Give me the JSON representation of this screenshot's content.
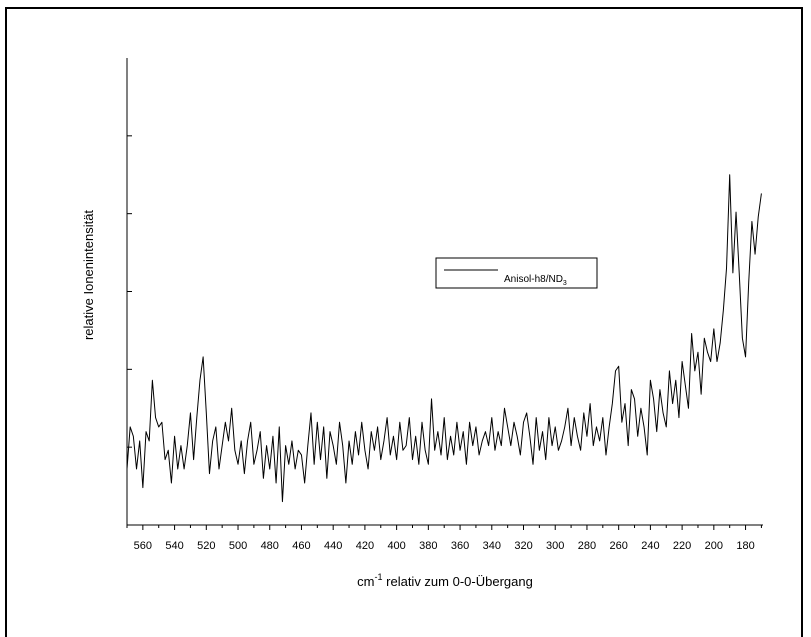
{
  "chart_data": {
    "type": "line",
    "title": "",
    "xlabel": "cm",
    "xlabel_superscript": "-1",
    "xlabel_suffix": " relativ zum 0-0-Übergang",
    "ylabel": "relative Ionenintensität",
    "xlim": [
      570,
      169
    ],
    "ylim": [
      0,
      1
    ],
    "x_ticks": [
      560,
      540,
      520,
      500,
      480,
      460,
      440,
      420,
      400,
      380,
      360,
      340,
      320,
      300,
      280,
      260,
      240,
      220,
      200,
      180
    ],
    "y_ticks_count": 6,
    "y_tick_labels_shown": false,
    "grid": false,
    "legend": {
      "placement": "center",
      "entries": [
        {
          "name": "Anisol-h8/ND",
          "subscript": "3"
        }
      ]
    },
    "series": [
      {
        "name": "Anisol-h8/ND3",
        "color": "#000000",
        "points": [
          [
            570,
            0.12
          ],
          [
            568,
            0.21
          ],
          [
            566,
            0.19
          ],
          [
            564,
            0.12
          ],
          [
            562,
            0.18
          ],
          [
            560,
            0.08
          ],
          [
            558,
            0.2
          ],
          [
            556,
            0.18
          ],
          [
            554,
            0.31
          ],
          [
            552,
            0.23
          ],
          [
            550,
            0.21
          ],
          [
            548,
            0.22
          ],
          [
            546,
            0.14
          ],
          [
            544,
            0.16
          ],
          [
            542,
            0.09
          ],
          [
            540,
            0.19
          ],
          [
            538,
            0.12
          ],
          [
            536,
            0.17
          ],
          [
            534,
            0.12
          ],
          [
            532,
            0.17
          ],
          [
            530,
            0.24
          ],
          [
            528,
            0.14
          ],
          [
            526,
            0.23
          ],
          [
            524,
            0.31
          ],
          [
            522,
            0.36
          ],
          [
            520,
            0.24
          ],
          [
            518,
            0.11
          ],
          [
            516,
            0.18
          ],
          [
            514,
            0.21
          ],
          [
            512,
            0.12
          ],
          [
            510,
            0.17
          ],
          [
            508,
            0.22
          ],
          [
            506,
            0.18
          ],
          [
            504,
            0.25
          ],
          [
            502,
            0.16
          ],
          [
            500,
            0.13
          ],
          [
            498,
            0.18
          ],
          [
            496,
            0.11
          ],
          [
            494,
            0.18
          ],
          [
            492,
            0.22
          ],
          [
            490,
            0.13
          ],
          [
            488,
            0.16
          ],
          [
            486,
            0.2
          ],
          [
            484,
            0.1
          ],
          [
            482,
            0.17
          ],
          [
            480,
            0.12
          ],
          [
            478,
            0.19
          ],
          [
            476,
            0.09
          ],
          [
            474,
            0.21
          ],
          [
            472,
            0.05
          ],
          [
            470,
            0.17
          ],
          [
            468,
            0.13
          ],
          [
            466,
            0.18
          ],
          [
            464,
            0.12
          ],
          [
            462,
            0.16
          ],
          [
            460,
            0.15
          ],
          [
            458,
            0.09
          ],
          [
            456,
            0.17
          ],
          [
            454,
            0.24
          ],
          [
            452,
            0.13
          ],
          [
            450,
            0.22
          ],
          [
            448,
            0.14
          ],
          [
            446,
            0.21
          ],
          [
            444,
            0.1
          ],
          [
            442,
            0.2
          ],
          [
            440,
            0.17
          ],
          [
            438,
            0.13
          ],
          [
            436,
            0.22
          ],
          [
            434,
            0.17
          ],
          [
            432,
            0.09
          ],
          [
            430,
            0.18
          ],
          [
            428,
            0.13
          ],
          [
            426,
            0.2
          ],
          [
            424,
            0.15
          ],
          [
            422,
            0.22
          ],
          [
            420,
            0.16
          ],
          [
            418,
            0.12
          ],
          [
            416,
            0.2
          ],
          [
            414,
            0.16
          ],
          [
            412,
            0.21
          ],
          [
            410,
            0.14
          ],
          [
            408,
            0.18
          ],
          [
            406,
            0.23
          ],
          [
            404,
            0.15
          ],
          [
            402,
            0.19
          ],
          [
            400,
            0.14
          ],
          [
            398,
            0.22
          ],
          [
            396,
            0.16
          ],
          [
            394,
            0.17
          ],
          [
            392,
            0.23
          ],
          [
            390,
            0.14
          ],
          [
            388,
            0.19
          ],
          [
            386,
            0.13
          ],
          [
            384,
            0.22
          ],
          [
            382,
            0.16
          ],
          [
            380,
            0.13
          ],
          [
            378,
            0.27
          ],
          [
            376,
            0.16
          ],
          [
            374,
            0.2
          ],
          [
            372,
            0.15
          ],
          [
            370,
            0.23
          ],
          [
            368,
            0.14
          ],
          [
            366,
            0.19
          ],
          [
            364,
            0.15
          ],
          [
            362,
            0.22
          ],
          [
            360,
            0.16
          ],
          [
            358,
            0.2
          ],
          [
            356,
            0.13
          ],
          [
            354,
            0.22
          ],
          [
            352,
            0.17
          ],
          [
            350,
            0.21
          ],
          [
            348,
            0.15
          ],
          [
            346,
            0.18
          ],
          [
            344,
            0.2
          ],
          [
            342,
            0.17
          ],
          [
            340,
            0.23
          ],
          [
            338,
            0.16
          ],
          [
            336,
            0.2
          ],
          [
            334,
            0.17
          ],
          [
            332,
            0.25
          ],
          [
            330,
            0.21
          ],
          [
            328,
            0.17
          ],
          [
            326,
            0.22
          ],
          [
            324,
            0.19
          ],
          [
            322,
            0.15
          ],
          [
            320,
            0.22
          ],
          [
            318,
            0.24
          ],
          [
            316,
            0.19
          ],
          [
            314,
            0.13
          ],
          [
            312,
            0.23
          ],
          [
            310,
            0.16
          ],
          [
            308,
            0.2
          ],
          [
            306,
            0.14
          ],
          [
            304,
            0.23
          ],
          [
            302,
            0.17
          ],
          [
            300,
            0.21
          ],
          [
            298,
            0.16
          ],
          [
            296,
            0.18
          ],
          [
            294,
            0.21
          ],
          [
            292,
            0.25
          ],
          [
            290,
            0.17
          ],
          [
            288,
            0.23
          ],
          [
            286,
            0.19
          ],
          [
            284,
            0.16
          ],
          [
            282,
            0.24
          ],
          [
            280,
            0.19
          ],
          [
            278,
            0.26
          ],
          [
            276,
            0.17
          ],
          [
            274,
            0.21
          ],
          [
            272,
            0.18
          ],
          [
            270,
            0.23
          ],
          [
            268,
            0.15
          ],
          [
            266,
            0.21
          ],
          [
            264,
            0.26
          ],
          [
            262,
            0.33
          ],
          [
            260,
            0.34
          ],
          [
            258,
            0.22
          ],
          [
            256,
            0.26
          ],
          [
            254,
            0.17
          ],
          [
            252,
            0.29
          ],
          [
            250,
            0.27
          ],
          [
            248,
            0.19
          ],
          [
            246,
            0.25
          ],
          [
            244,
            0.21
          ],
          [
            242,
            0.15
          ],
          [
            240,
            0.31
          ],
          [
            238,
            0.27
          ],
          [
            236,
            0.2
          ],
          [
            234,
            0.29
          ],
          [
            232,
            0.24
          ],
          [
            230,
            0.21
          ],
          [
            228,
            0.33
          ],
          [
            226,
            0.26
          ],
          [
            224,
            0.31
          ],
          [
            222,
            0.23
          ],
          [
            220,
            0.35
          ],
          [
            218,
            0.3
          ],
          [
            216,
            0.25
          ],
          [
            214,
            0.41
          ],
          [
            212,
            0.33
          ],
          [
            210,
            0.37
          ],
          [
            208,
            0.28
          ],
          [
            206,
            0.4
          ],
          [
            204,
            0.37
          ],
          [
            202,
            0.35
          ],
          [
            200,
            0.42
          ],
          [
            198,
            0.35
          ],
          [
            196,
            0.39
          ],
          [
            194,
            0.46
          ],
          [
            192,
            0.55
          ],
          [
            190,
            0.75
          ],
          [
            188,
            0.54
          ],
          [
            186,
            0.67
          ],
          [
            184,
            0.54
          ],
          [
            182,
            0.4
          ],
          [
            180,
            0.36
          ],
          [
            178,
            0.52
          ],
          [
            176,
            0.65
          ],
          [
            174,
            0.58
          ],
          [
            172,
            0.66
          ],
          [
            170,
            0.71
          ]
        ]
      }
    ]
  }
}
